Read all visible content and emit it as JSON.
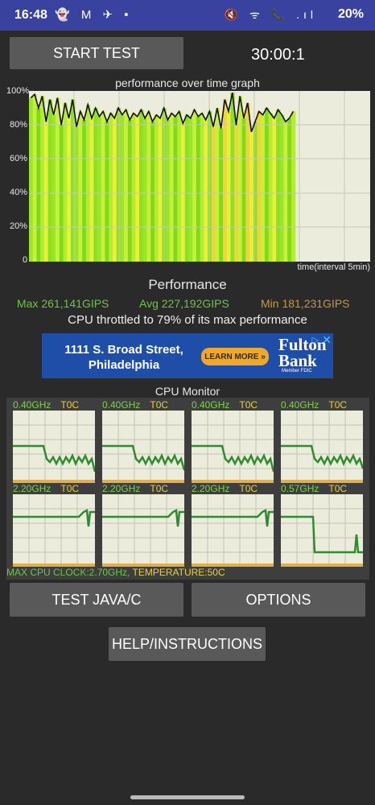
{
  "status_bar": {
    "time": "16:48",
    "left_icons": "👻 M ✈ •",
    "right_icons": "🔇 ᯤ 📞 .ıl",
    "battery": "20%"
  },
  "controls": {
    "start_test": "START TEST",
    "timer": "30:00:1",
    "test_java": "TEST JAVA/C",
    "options": "OPTIONS",
    "help": "HELP/INSTRUCTIONS"
  },
  "graph": {
    "title": "performance over time graph",
    "y_labels": [
      "100%",
      "80%",
      "60%",
      "40%",
      "20%",
      "0"
    ],
    "x_caption": "time(interval 5min)"
  },
  "chart_data": {
    "type": "line",
    "title": "performance over time graph",
    "xlabel": "time(interval 5min)",
    "ylabel": "",
    "ylim": [
      0,
      100
    ],
    "filled_fraction": 0.78,
    "values": [
      96,
      98,
      90,
      97,
      82,
      95,
      86,
      96,
      80,
      93,
      84,
      95,
      79,
      88,
      83,
      92,
      84,
      90,
      85,
      88,
      82,
      87,
      84,
      90,
      86,
      89,
      83,
      87,
      85,
      89,
      84,
      88,
      82,
      86,
      84,
      90,
      83,
      87,
      85,
      88,
      81,
      86,
      84,
      89,
      85,
      87,
      83,
      88,
      79,
      90,
      78,
      95,
      88,
      99,
      80,
      97,
      84,
      93,
      76,
      82,
      88,
      86,
      90,
      87,
      84,
      89,
      86,
      82,
      84,
      88
    ]
  },
  "performance": {
    "title": "Performance",
    "max": "Max 261,141GIPS",
    "avg": "Avg 227,192GIPS",
    "min": "Min 181,231GIPS",
    "throttle_text": "CPU throttled to 79% of its max performance",
    "max_color": "#6cc644",
    "avg_color": "#6cc644",
    "min_color": "#c79a3a"
  },
  "ad": {
    "address": "1111 S. Broad Street, Philadelphia",
    "button": "LEARN MORE »",
    "logo": "Fulton Bank",
    "fdic": "Member FDIC",
    "close": "✕",
    "info": "▷"
  },
  "cpu_monitor": {
    "title": "CPU Monitor",
    "cores": [
      {
        "freq": "0.40GHz",
        "temp": "T0C"
      },
      {
        "freq": "0.40GHz",
        "temp": "T0C"
      },
      {
        "freq": "0.40GHz",
        "temp": "T0C"
      },
      {
        "freq": "0.40GHz",
        "temp": "T0C"
      },
      {
        "freq": "2.20GHz",
        "temp": "T0C"
      },
      {
        "freq": "2.20GHz",
        "temp": "T0C"
      },
      {
        "freq": "2.20GHz",
        "temp": "T0C"
      },
      {
        "freq": "0.57GHz",
        "temp": "T0C"
      }
    ],
    "max_clock": "MAX CPU CLOCK:2.70GHz,",
    "temperature": " TEMPERATURE:50C"
  }
}
